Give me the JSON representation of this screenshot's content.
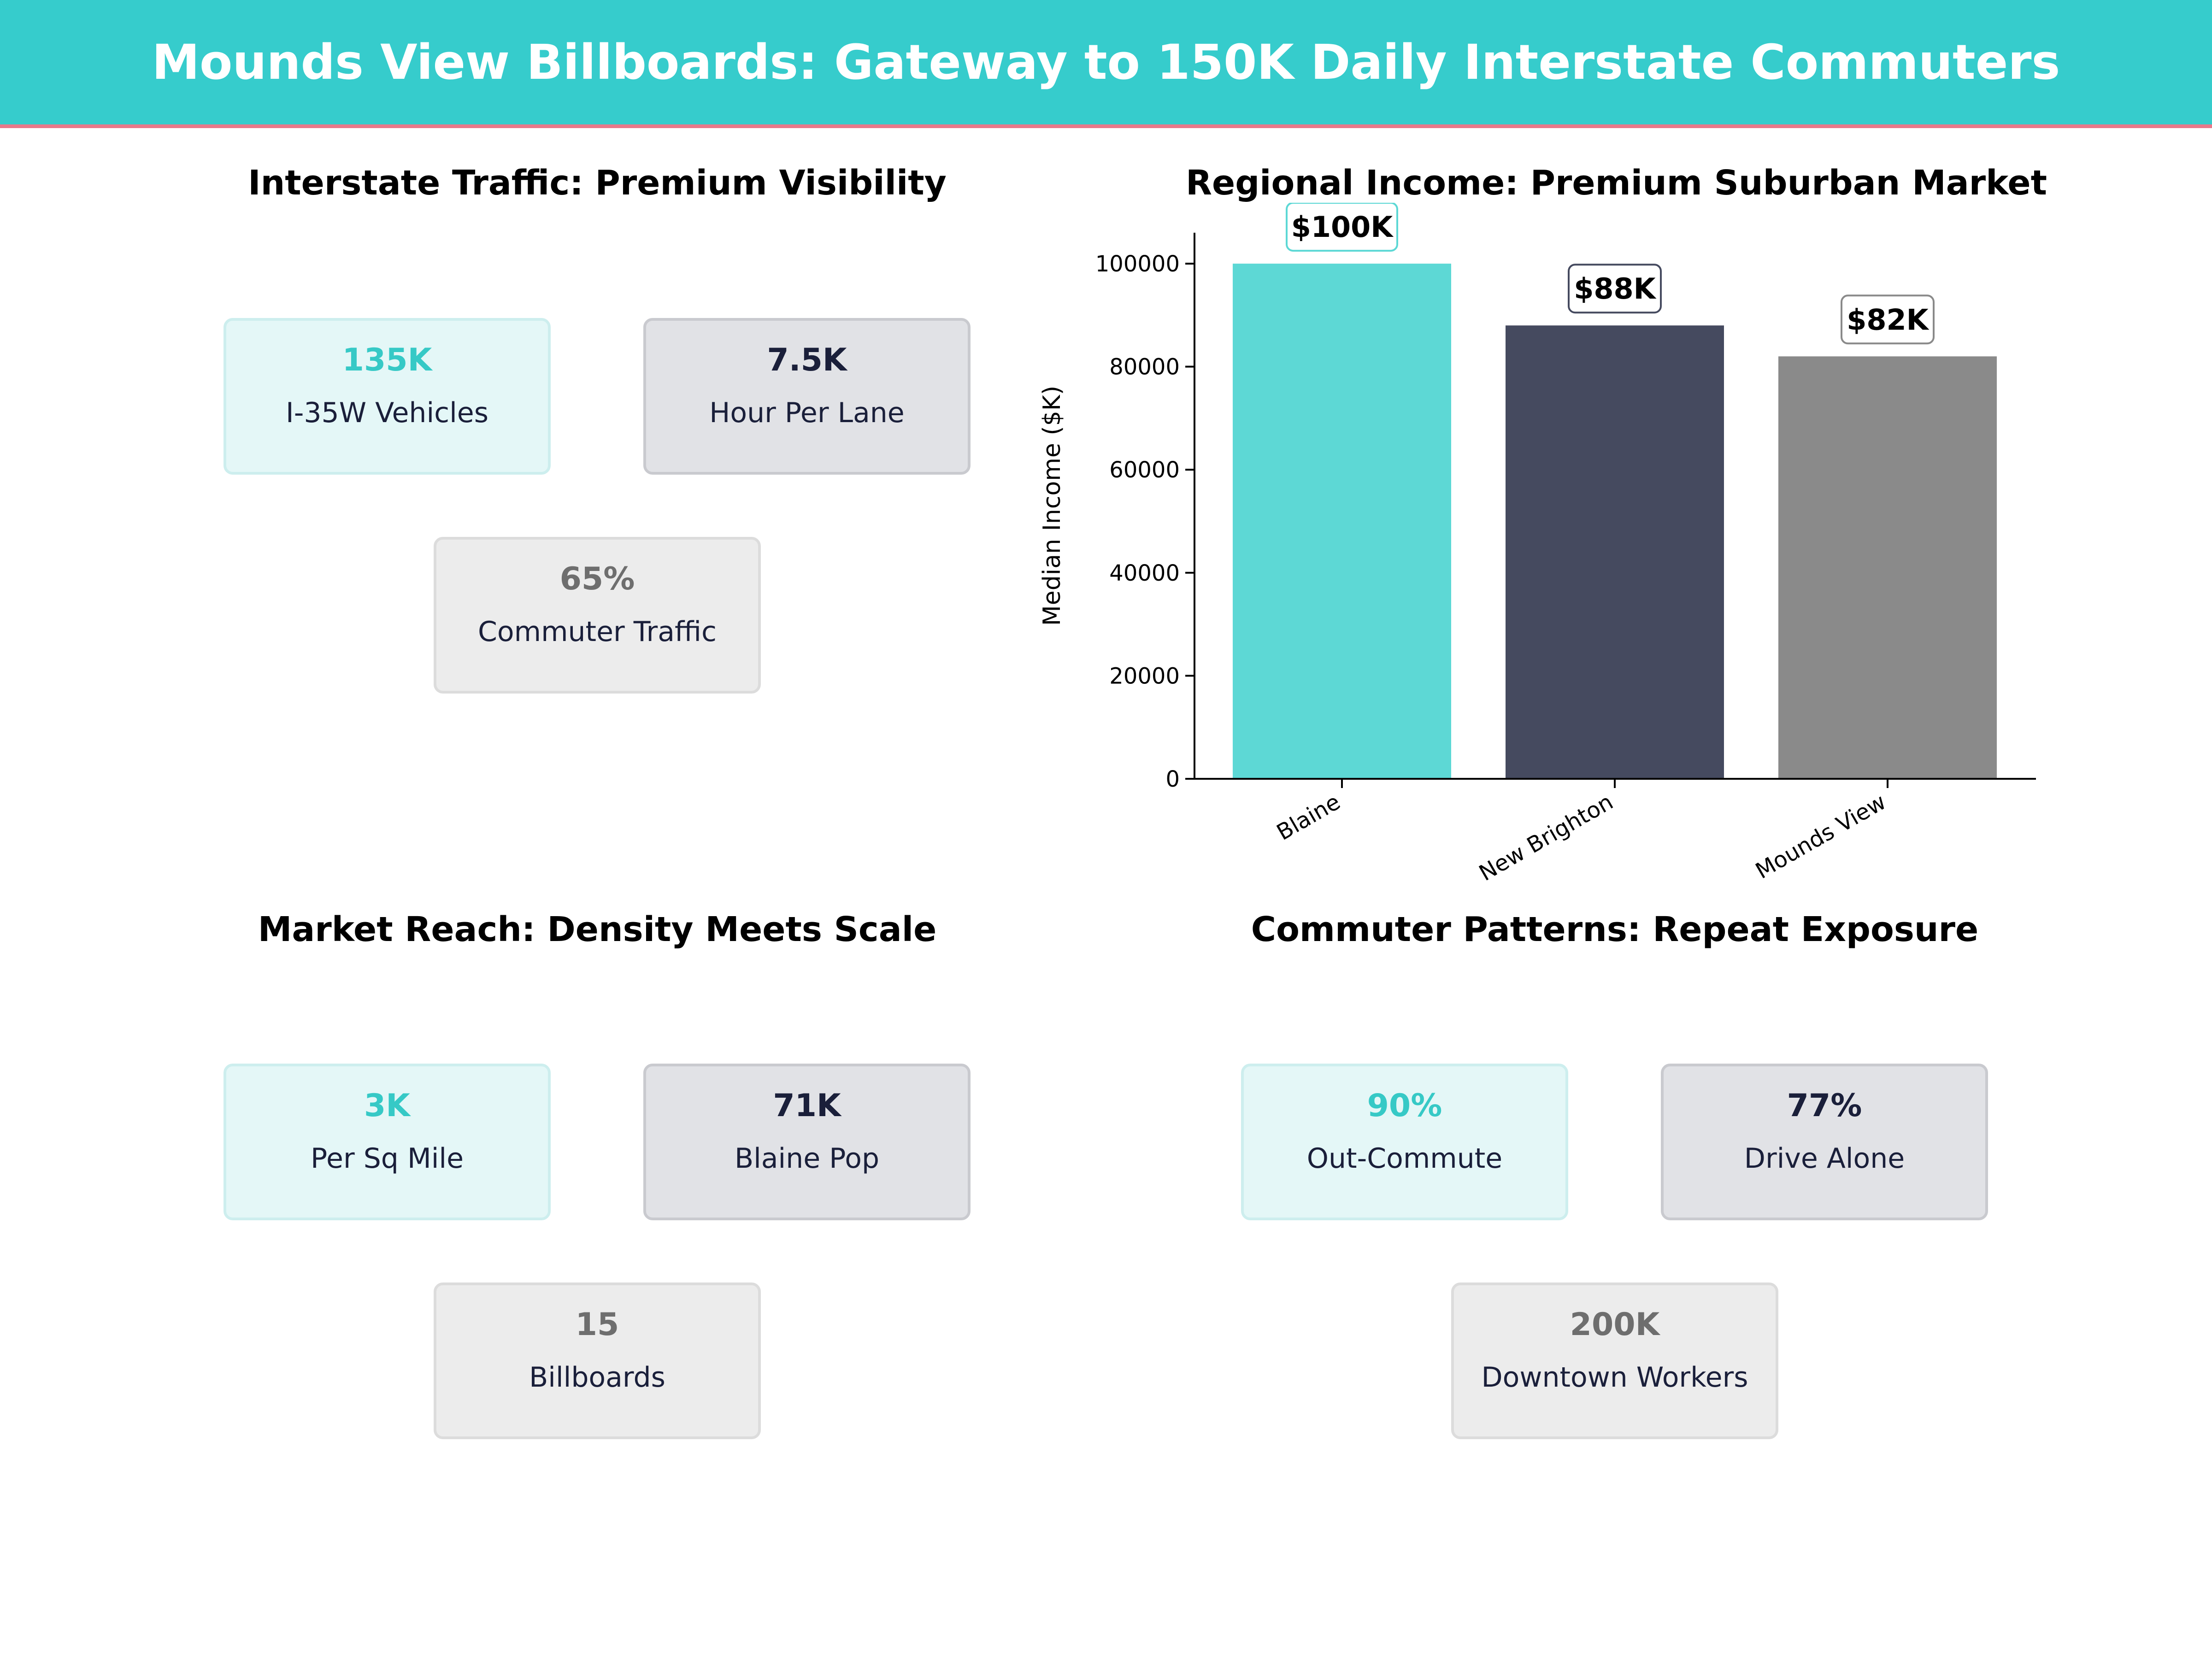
{
  "title": "Mounds View Billboards: Gateway to 150K Daily Interstate Commuters",
  "colors": {
    "banner": "#36cccc",
    "banner_border": "#e8798a",
    "teal": "#5dd8d5",
    "navy": "#454a5f",
    "gray": "#8a8a8a"
  },
  "panels": {
    "traffic": {
      "title": "Interstate Traffic: Premium Visibility",
      "cards": [
        {
          "value": "135K",
          "label": "I-35W Vehicles"
        },
        {
          "value": "7.5K",
          "label": "Hour Per Lane"
        },
        {
          "value": "65%",
          "label": "Commuter Traffic"
        }
      ]
    },
    "income": {
      "title": "Regional Income: Premium Suburban Market"
    },
    "reach": {
      "title": "Market Reach: Density Meets Scale",
      "cards": [
        {
          "value": "3K",
          "label": "Per Sq Mile"
        },
        {
          "value": "71K",
          "label": "Blaine Pop"
        },
        {
          "value": "15",
          "label": "Billboards"
        }
      ]
    },
    "commute": {
      "title": "Commuter Patterns: Repeat Exposure",
      "cards": [
        {
          "value": "90%",
          "label": "Out-Commute"
        },
        {
          "value": "77%",
          "label": "Drive Alone"
        },
        {
          "value": "200K",
          "label": "Downtown Workers"
        }
      ]
    }
  },
  "chart_data": {
    "type": "bar",
    "title": "Regional Income: Premium Suburban Market",
    "categories": [
      "Blaine",
      "New Brighton",
      "Mounds View"
    ],
    "values": [
      100000,
      88000,
      82000
    ],
    "data_labels": [
      "$100K",
      "$88K",
      "$82K"
    ],
    "colors": [
      "#5dd8d5",
      "#454a5f",
      "#8a8a8a"
    ],
    "xlabel": "",
    "ylabel": "Median Income ($K)",
    "ylim": [
      0,
      106000
    ],
    "yticks": [
      0,
      20000,
      40000,
      60000,
      80000,
      100000
    ],
    "grid": false,
    "legend": "none"
  }
}
